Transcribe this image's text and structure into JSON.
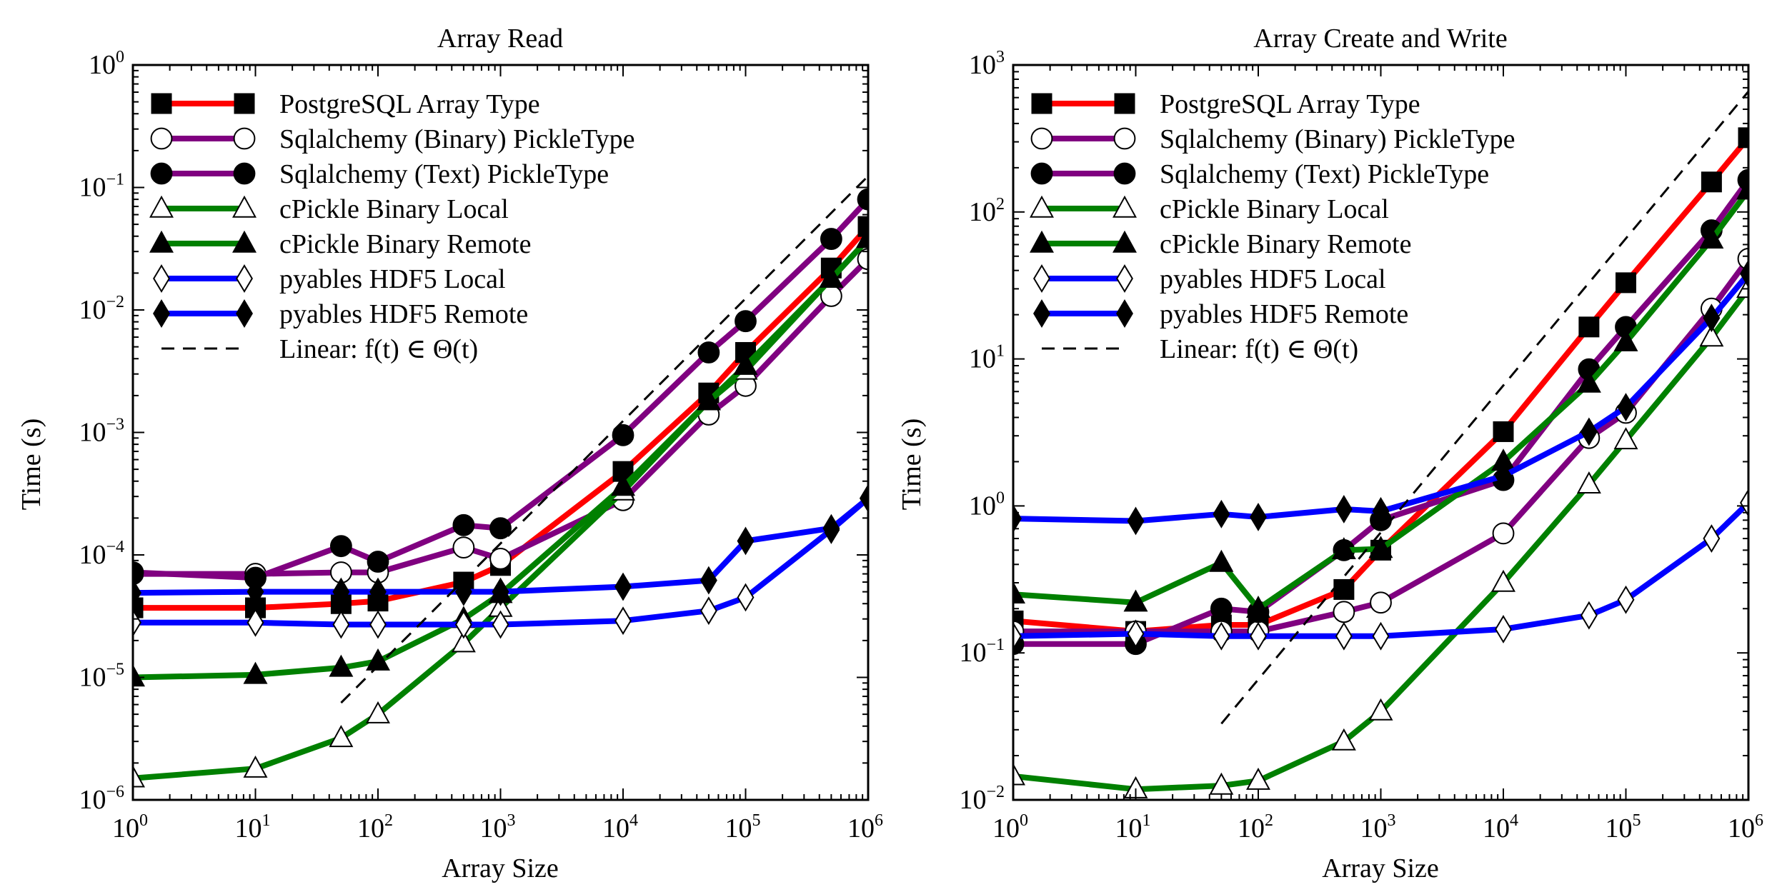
{
  "figure": {
    "background": "#ffffff"
  },
  "chart_data": [
    {
      "type": "line",
      "title": "Array Read",
      "xlabel": "Array Size",
      "ylabel": "Time (s)",
      "xscale": "log",
      "yscale": "log",
      "xlim": [
        1,
        1000000
      ],
      "ylim": [
        1e-06,
        1
      ],
      "x_ticks": [
        {
          "base": "10",
          "exp": "0"
        },
        {
          "base": "10",
          "exp": "1"
        },
        {
          "base": "10",
          "exp": "2"
        },
        {
          "base": "10",
          "exp": "3"
        },
        {
          "base": "10",
          "exp": "4"
        },
        {
          "base": "10",
          "exp": "5"
        },
        {
          "base": "10",
          "exp": "6"
        }
      ],
      "y_ticks": [
        {
          "base": "10",
          "exp": "−6"
        },
        {
          "base": "10",
          "exp": "−5"
        },
        {
          "base": "10",
          "exp": "−4"
        },
        {
          "base": "10",
          "exp": "−3"
        },
        {
          "base": "10",
          "exp": "−2"
        },
        {
          "base": "10",
          "exp": "−1"
        },
        {
          "base": "10",
          "exp": "0"
        }
      ],
      "legend_position": "top-left",
      "grid": false,
      "series": [
        {
          "name": "PostgreSQL Array Type",
          "color": "#ff0000",
          "marker": "square-filled",
          "x": [
            1,
            10,
            50,
            100,
            500,
            1000,
            10000,
            50000,
            100000,
            500000,
            1000000
          ],
          "y": [
            3.7e-05,
            3.7e-05,
            4e-05,
            4.2e-05,
            6e-05,
            8.2e-05,
            0.00048,
            0.0021,
            0.0045,
            0.022,
            0.048
          ]
        },
        {
          "name": "Sqlalchemy (Binary) PickleType",
          "color": "#800080",
          "marker": "circle-open",
          "x": [
            1,
            10,
            50,
            100,
            500,
            1000,
            10000,
            50000,
            100000,
            500000,
            1000000
          ],
          "y": [
            7e-05,
            7e-05,
            7.2e-05,
            7.2e-05,
            0.000115,
            9.3e-05,
            0.00028,
            0.0014,
            0.0024,
            0.013,
            0.026
          ]
        },
        {
          "name": "Sqlalchemy (Text) PickleType",
          "color": "#800080",
          "marker": "circle-filled",
          "x": [
            1,
            10,
            50,
            100,
            500,
            1000,
            10000,
            50000,
            100000,
            500000,
            1000000
          ],
          "y": [
            7.2e-05,
            6.5e-05,
            0.000118,
            8.8e-05,
            0.000175,
            0.000165,
            0.00095,
            0.0045,
            0.0081,
            0.038,
            0.08
          ]
        },
        {
          "name": "cPickle Binary Local",
          "color": "#008000",
          "marker": "triangle-open",
          "x": [
            1,
            10,
            50,
            100,
            500,
            1000,
            10000,
            50000,
            100000,
            500000,
            1000000
          ],
          "y": [
            1.5e-06,
            1.8e-06,
            3.2e-06,
            5e-06,
            1.9e-05,
            3.7e-05,
            0.00033,
            0.0018,
            0.0032,
            0.018,
            0.038
          ]
        },
        {
          "name": "cPickle Binary Remote",
          "color": "#008000",
          "marker": "triangle-filled",
          "x": [
            1,
            10,
            50,
            100,
            500,
            1000,
            10000,
            50000,
            100000,
            500000,
            1000000
          ],
          "y": [
            1e-05,
            1.05e-05,
            1.2e-05,
            1.35e-05,
            3e-05,
            4.8e-05,
            0.00036,
            0.0018,
            0.0035,
            0.018,
            0.038
          ]
        },
        {
          "name": "pyables HDF5 Local",
          "color": "#0000ff",
          "marker": "diamond-open",
          "x": [
            1,
            10,
            50,
            100,
            500,
            1000,
            10000,
            50000,
            100000,
            500000,
            1000000
          ],
          "y": [
            2.8e-05,
            2.8e-05,
            2.7e-05,
            2.7e-05,
            2.7e-05,
            2.7e-05,
            2.9e-05,
            3.5e-05,
            4.5e-05,
            0.00016,
            0.00029
          ]
        },
        {
          "name": "pyables HDF5 Remote",
          "color": "#0000ff",
          "marker": "diamond-filled",
          "x": [
            1,
            10,
            50,
            100,
            500,
            1000,
            10000,
            50000,
            100000,
            500000,
            1000000
          ],
          "y": [
            4.9e-05,
            5e-05,
            5e-05,
            5e-05,
            5e-05,
            5e-05,
            5.5e-05,
            6.2e-05,
            0.00013,
            0.000165,
            0.00029
          ]
        },
        {
          "name": "Linear: f(t) ∈ Θ(t)",
          "color": "#000000",
          "marker": "none",
          "dashed": true,
          "x": [
            50,
            1000000
          ],
          "y": [
            6.2e-06,
            0.124
          ]
        }
      ]
    },
    {
      "type": "line",
      "title": "Array Create and Write",
      "xlabel": "Array Size",
      "ylabel": "Time (s)",
      "xscale": "log",
      "yscale": "log",
      "xlim": [
        1,
        1000000
      ],
      "ylim": [
        0.01,
        1000
      ],
      "x_ticks": [
        {
          "base": "10",
          "exp": "0"
        },
        {
          "base": "10",
          "exp": "1"
        },
        {
          "base": "10",
          "exp": "2"
        },
        {
          "base": "10",
          "exp": "3"
        },
        {
          "base": "10",
          "exp": "4"
        },
        {
          "base": "10",
          "exp": "5"
        },
        {
          "base": "10",
          "exp": "6"
        }
      ],
      "y_ticks": [
        {
          "base": "10",
          "exp": "−2"
        },
        {
          "base": "10",
          "exp": "−1"
        },
        {
          "base": "10",
          "exp": "0"
        },
        {
          "base": "10",
          "exp": "1"
        },
        {
          "base": "10",
          "exp": "2"
        },
        {
          "base": "10",
          "exp": "3"
        }
      ],
      "legend_position": "top-left",
      "grid": false,
      "series": [
        {
          "name": "PostgreSQL Array Type",
          "color": "#ff0000",
          "marker": "square-filled",
          "x": [
            1,
            10,
            50,
            100,
            500,
            1000,
            10000,
            50000,
            100000,
            500000,
            1000000
          ],
          "y": [
            0.165,
            0.14,
            0.155,
            0.155,
            0.27,
            0.5,
            3.2,
            16.5,
            33,
            160,
            320
          ]
        },
        {
          "name": "Sqlalchemy (Binary) PickleType",
          "color": "#800080",
          "marker": "circle-open",
          "x": [
            1,
            10,
            50,
            100,
            500,
            1000,
            10000,
            50000,
            100000,
            500000,
            1000000
          ],
          "y": [
            0.14,
            0.14,
            0.14,
            0.14,
            0.19,
            0.22,
            0.65,
            2.9,
            4.3,
            22,
            48
          ]
        },
        {
          "name": "Sqlalchemy (Text) PickleType",
          "color": "#800080",
          "marker": "circle-filled",
          "x": [
            1,
            10,
            50,
            100,
            500,
            1000,
            10000,
            50000,
            100000,
            500000,
            1000000
          ],
          "y": [
            0.115,
            0.115,
            0.2,
            0.19,
            0.5,
            0.8,
            1.5,
            8.5,
            16.5,
            75,
            165
          ]
        },
        {
          "name": "cPickle Binary Local",
          "color": "#008000",
          "marker": "triangle-open",
          "x": [
            1,
            10,
            50,
            100,
            500,
            1000,
            10000,
            50000,
            100000,
            500000,
            1000000
          ],
          "y": [
            0.0145,
            0.0118,
            0.0125,
            0.0135,
            0.025,
            0.04,
            0.3,
            1.4,
            2.8,
            14,
            30
          ]
        },
        {
          "name": "cPickle Binary Remote",
          "color": "#008000",
          "marker": "triangle-filled",
          "x": [
            1,
            10,
            50,
            100,
            500,
            1000,
            10000,
            50000,
            100000,
            500000,
            1000000
          ],
          "y": [
            0.25,
            0.22,
            0.41,
            0.2,
            0.5,
            0.51,
            2.0,
            6.8,
            13,
            65,
            140
          ]
        },
        {
          "name": "pyables HDF5 Local",
          "color": "#0000ff",
          "marker": "diamond-open",
          "x": [
            1,
            10,
            50,
            100,
            500,
            1000,
            10000,
            50000,
            100000,
            500000,
            1000000
          ],
          "y": [
            0.13,
            0.135,
            0.13,
            0.13,
            0.13,
            0.13,
            0.145,
            0.18,
            0.23,
            0.6,
            1.05
          ]
        },
        {
          "name": "pyables HDF5 Remote",
          "color": "#0000ff",
          "marker": "diamond-filled",
          "x": [
            1,
            10,
            50,
            100,
            500,
            1000,
            10000,
            50000,
            100000,
            500000,
            1000000
          ],
          "y": [
            0.82,
            0.79,
            0.88,
            0.84,
            0.95,
            0.92,
            1.6,
            3.2,
            4.7,
            19,
            38
          ]
        },
        {
          "name": "Linear: f(t) ∈ Θ(t)",
          "color": "#000000",
          "marker": "none",
          "dashed": true,
          "x": [
            50,
            1000000
          ],
          "y": [
            0.033,
            660
          ]
        }
      ]
    }
  ]
}
